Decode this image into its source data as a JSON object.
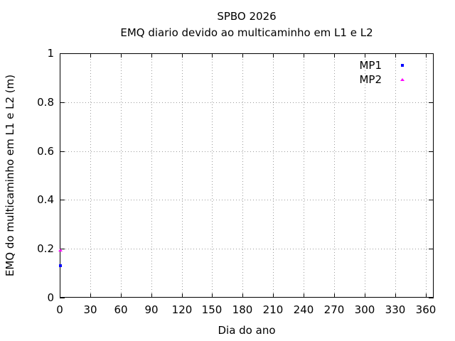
{
  "window": {
    "background": "#ffffff"
  },
  "chart_data": {
    "type": "scatter",
    "title": "SPBO 2026",
    "subtitle": "EMQ diario devido ao multicaminho em L1 e L2",
    "xlabel": "Dia do ano",
    "ylabel": "EMQ do multicaminho em L1 e L2 (m)",
    "xlim": [
      0,
      368
    ],
    "ylim": [
      0,
      1
    ],
    "x_ticks": [
      {
        "value": 0,
        "label": "0"
      },
      {
        "value": 30,
        "label": "30"
      },
      {
        "value": 60,
        "label": "60"
      },
      {
        "value": 90,
        "label": "90"
      },
      {
        "value": 120,
        "label": "120"
      },
      {
        "value": 150,
        "label": "150"
      },
      {
        "value": 180,
        "label": "180"
      },
      {
        "value": 210,
        "label": "210"
      },
      {
        "value": 240,
        "label": "240"
      },
      {
        "value": 270,
        "label": "270"
      },
      {
        "value": 300,
        "label": "300"
      },
      {
        "value": 330,
        "label": "330"
      },
      {
        "value": 360,
        "label": "360"
      }
    ],
    "y_ticks": [
      {
        "value": 0,
        "label": "0"
      },
      {
        "value": 0.2,
        "label": "0.2"
      },
      {
        "value": 0.4,
        "label": "0.4"
      },
      {
        "value": 0.6,
        "label": "0.6"
      },
      {
        "value": 0.8,
        "label": "0.8"
      },
      {
        "value": 1,
        "label": "1"
      }
    ],
    "grid": true,
    "grid_color": "#9a9a9a",
    "axis_color": "#000000",
    "legend_position": "top-right",
    "series": [
      {
        "name": "MP1",
        "color": "#0000ff",
        "marker": "square",
        "points": [
          {
            "x": 1,
            "y": 0.13
          }
        ]
      },
      {
        "name": "MP2",
        "color": "#ff00ff",
        "marker": "triangle",
        "points": [
          {
            "x": 1,
            "y": 0.195
          }
        ]
      }
    ]
  }
}
